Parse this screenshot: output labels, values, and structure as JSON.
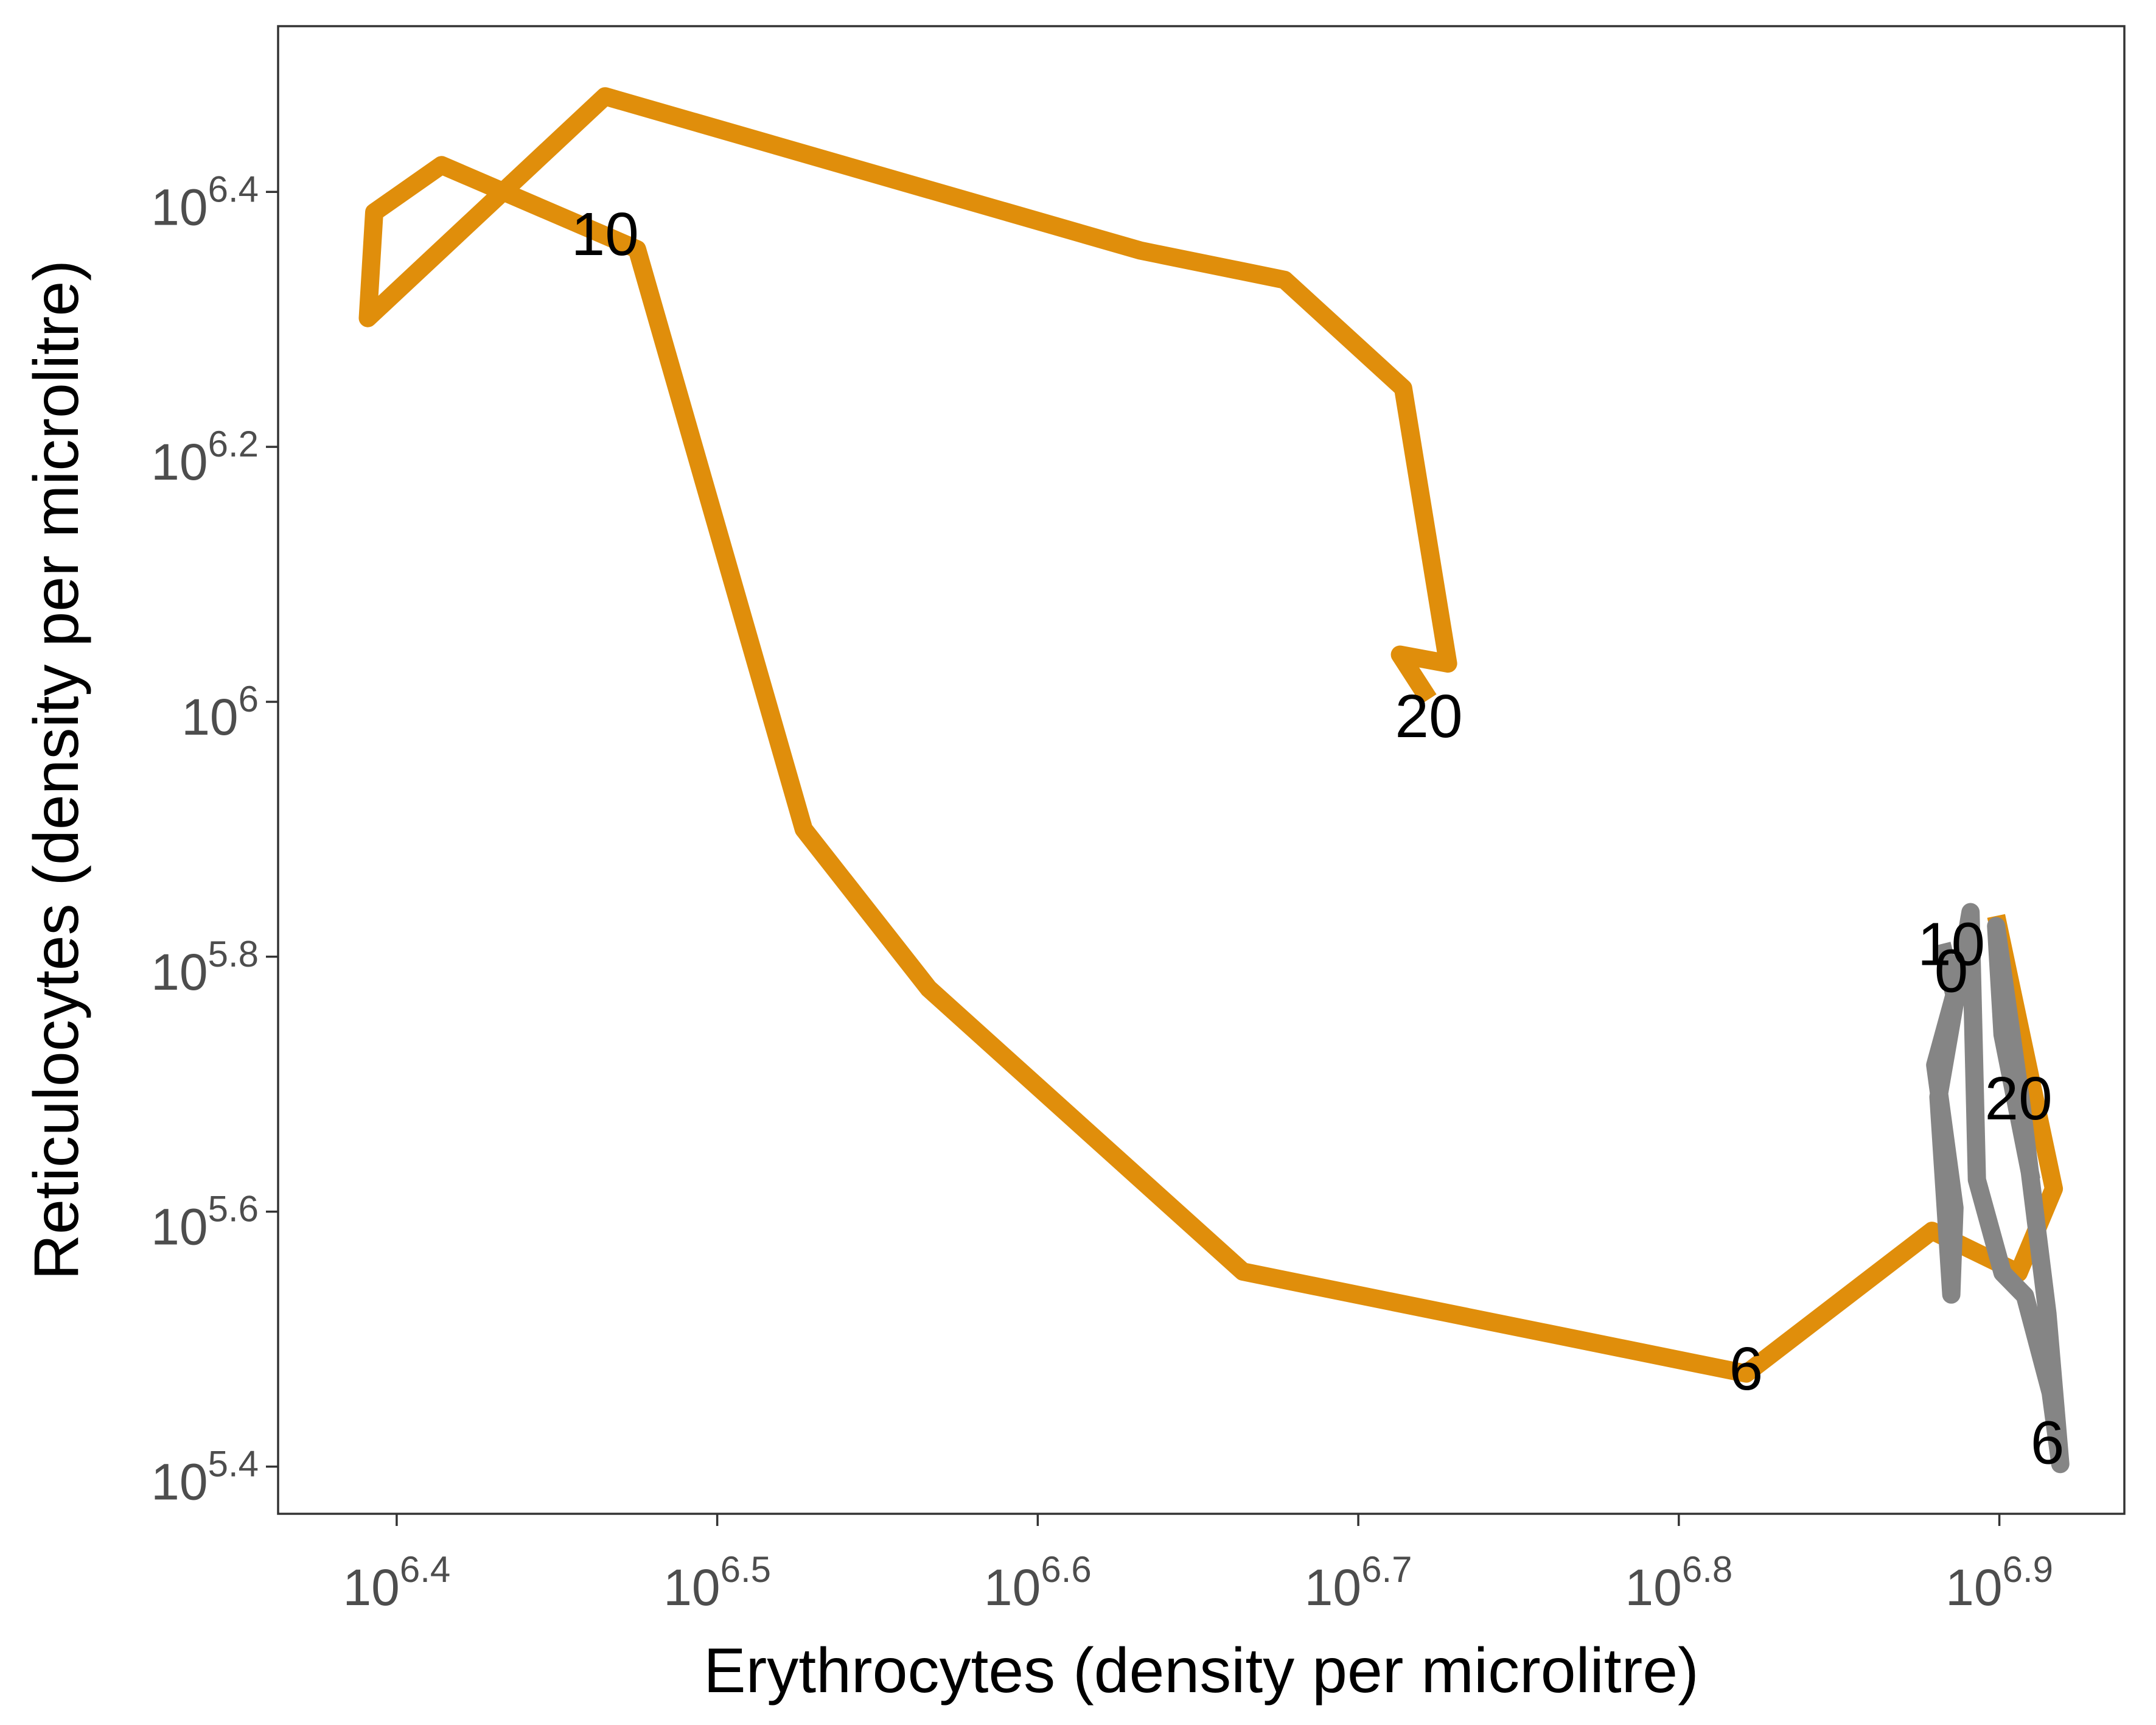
{
  "chart_data": {
    "type": "line",
    "title": "",
    "xlabel": "Erythrocytes (density per microlitre)",
    "ylabel": "Reticulocytes (density per microlitre)",
    "x_scale": "log10",
    "y_scale": "log10",
    "xlim_log10": [
      6.363,
      6.939
    ],
    "ylim_log10": [
      5.363,
      6.53
    ],
    "x_ticks": [
      {
        "value": 6.4,
        "base": "10",
        "exp": "6.4"
      },
      {
        "value": 6.5,
        "base": "10",
        "exp": "6.5"
      },
      {
        "value": 6.6,
        "base": "10",
        "exp": "6.6"
      },
      {
        "value": 6.7,
        "base": "10",
        "exp": "6.7"
      },
      {
        "value": 6.8,
        "base": "10",
        "exp": "6.8"
      },
      {
        "value": 6.9,
        "base": "10",
        "exp": "6.9"
      }
    ],
    "y_ticks": [
      {
        "value": 5.4,
        "base": "10",
        "exp": "5.4"
      },
      {
        "value": 5.6,
        "base": "10",
        "exp": "5.6"
      },
      {
        "value": 5.8,
        "base": "10",
        "exp": "5.8"
      },
      {
        "value": 6.0,
        "base": "10",
        "exp": ""
      },
      {
        "value": 6.2,
        "base": "10",
        "exp": "6.2"
      },
      {
        "value": 6.4,
        "base": "10",
        "exp": "6.4"
      }
    ],
    "grid": false,
    "legend": "none",
    "series": [
      {
        "color": "#E08E0B",
        "points_log10": [
          [
            6.899,
            5.832
          ],
          [
            6.917,
            5.618
          ],
          [
            6.906,
            5.552
          ],
          [
            6.879,
            5.585
          ],
          [
            6.821,
            5.473
          ],
          [
            6.664,
            5.553
          ],
          [
            6.566,
            5.775
          ],
          [
            6.527,
            5.9
          ],
          [
            6.475,
            6.355
          ],
          [
            6.414,
            6.421
          ],
          [
            6.393,
            6.384
          ],
          [
            6.391,
            6.301
          ],
          [
            6.465,
            6.475
          ],
          [
            6.632,
            6.354
          ],
          [
            6.677,
            6.331
          ],
          [
            6.714,
            6.246
          ],
          [
            6.728,
            6.03
          ],
          [
            6.713,
            6.037
          ],
          [
            6.722,
            6.002
          ]
        ],
        "labels": [
          {
            "text": "6",
            "x": 6.821,
            "y": 5.473
          },
          {
            "text": "10",
            "x": 6.465,
            "y": 6.363
          },
          {
            "text": "20",
            "x": 6.722,
            "y": 5.985
          }
        ]
      },
      {
        "color": "#858585",
        "points_log10": [
          [
            6.882,
            5.81
          ],
          [
            6.886,
            5.77
          ],
          [
            6.88,
            5.715
          ],
          [
            6.886,
            5.603
          ],
          [
            6.885,
            5.535
          ],
          [
            6.881,
            5.69
          ],
          [
            6.891,
            5.835
          ],
          [
            6.893,
            5.625
          ],
          [
            6.901,
            5.552
          ],
          [
            6.908,
            5.534
          ],
          [
            6.916,
            5.458
          ],
          [
            6.919,
            5.402
          ],
          [
            6.915,
            5.52
          ],
          [
            6.907,
            5.682
          ],
          [
            6.899,
            5.824
          ],
          [
            6.901,
            5.739
          ],
          [
            6.91,
            5.625
          ]
        ],
        "labels": [
          {
            "text": "0",
            "x": 6.885,
            "y": 5.785
          },
          {
            "text": "10",
            "x": 6.885,
            "y": 5.806
          },
          {
            "text": "20",
            "x": 6.906,
            "y": 5.685
          },
          {
            "text": "6",
            "x": 6.915,
            "y": 5.415
          }
        ]
      }
    ]
  }
}
